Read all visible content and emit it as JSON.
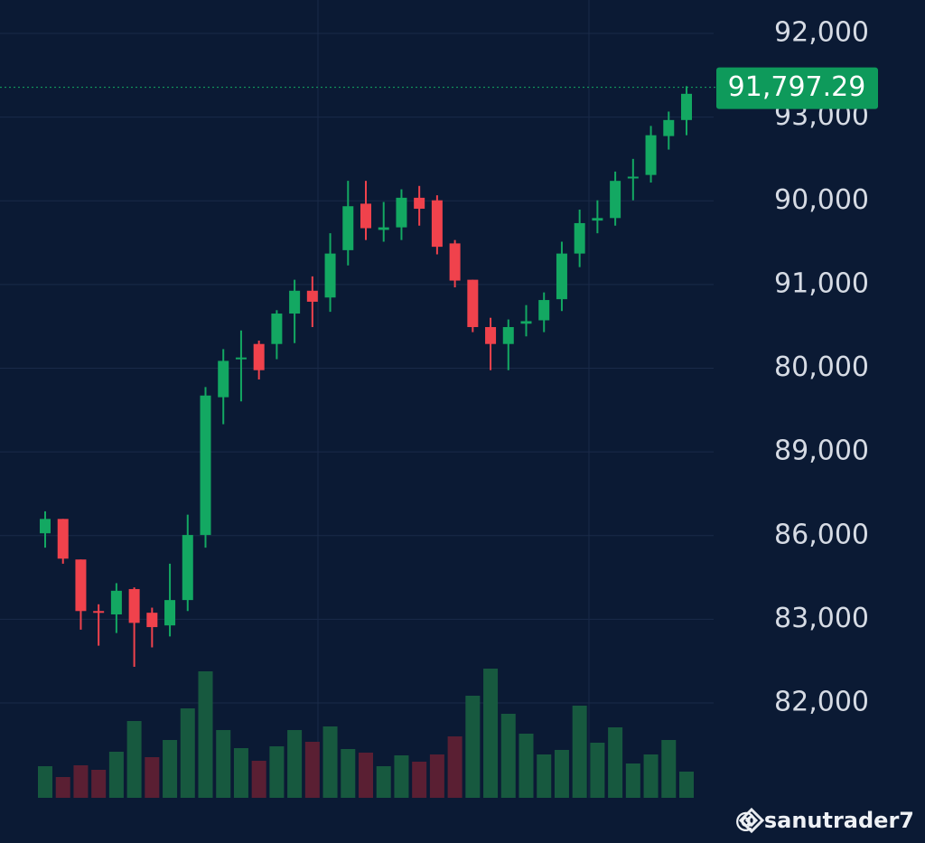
{
  "chart_data": {
    "type": "candlestick",
    "open": [
      86520,
      86690,
      86210,
      85600,
      85560,
      85860,
      85580,
      85430,
      85730,
      86500,
      88130,
      88580,
      88760,
      88760,
      89120,
      89390,
      89310,
      89870,
      90420,
      90110,
      90140,
      90490,
      90460,
      89950,
      89520,
      88960,
      88760,
      89000,
      89040,
      89290,
      89830,
      90220,
      90250,
      90720,
      90760,
      91220,
      91410
    ],
    "high": [
      86780,
      86690,
      86210,
      85680,
      85930,
      85880,
      85640,
      86160,
      86740,
      88250,
      88700,
      88920,
      88800,
      89160,
      89520,
      89560,
      90070,
      90690,
      90690,
      90440,
      90590,
      90630,
      90520,
      89990,
      89520,
      89070,
      89050,
      89220,
      89370,
      89970,
      90350,
      90460,
      90800,
      90950,
      91340,
      91510,
      91810
    ],
    "low": [
      86350,
      86160,
      85380,
      85190,
      85340,
      84940,
      85170,
      85300,
      85600,
      86350,
      87810,
      88080,
      88340,
      88580,
      88770,
      88960,
      89140,
      89690,
      89990,
      89970,
      89990,
      90160,
      89820,
      89430,
      88900,
      88450,
      88450,
      88850,
      88900,
      89150,
      89670,
      90070,
      90160,
      90460,
      90670,
      91060,
      91230
    ],
    "close": [
      86690,
      86220,
      85600,
      85580,
      85840,
      85460,
      85410,
      85730,
      86500,
      88150,
      88560,
      88600,
      88450,
      89120,
      89390,
      89260,
      89830,
      90390,
      90130,
      90140,
      90490,
      90360,
      89910,
      89510,
      88960,
      88760,
      88960,
      89030,
      89280,
      89830,
      90190,
      90250,
      90690,
      90740,
      91230,
      91410,
      91720
    ],
    "volume": [
      35,
      23,
      36,
      31,
      51,
      85,
      45,
      64,
      99,
      140,
      75,
      55,
      41,
      57,
      75,
      62,
      79,
      54,
      50,
      35,
      47,
      40,
      48,
      68,
      113,
      143,
      93,
      71,
      48,
      53,
      102,
      61,
      78,
      38,
      48,
      64,
      29
    ],
    "volume_colors": [
      "#17593f",
      "#5a1f33",
      "#5a1f33",
      "#5a1f33",
      "#17593f",
      "#17593f",
      "#5a1f33",
      "#17593f",
      "#17593f",
      "#17593f",
      "#17593f",
      "#17593f",
      "#5a1f33",
      "#17593f",
      "#17593f",
      "#5a1f33",
      "#17593f",
      "#17593f",
      "#5a1f33",
      "#17593f",
      "#17593f",
      "#5a1f33",
      "#5a1f33",
      "#5a1f33",
      "#17593f",
      "#17593f",
      "#17593f",
      "#17593f",
      "#17593f",
      "#17593f",
      "#17593f",
      "#17593f",
      "#17593f",
      "#17593f",
      "#17593f",
      "#17593f",
      "#17593f"
    ],
    "up_color": "#13a862",
    "down_color": "#f0424c",
    "ylim": [
      83390,
      92830
    ],
    "axis_labels": [
      "92,000",
      "93,000",
      "90,000",
      "91,000",
      "80,000",
      "89,000",
      "86,000",
      "83,000",
      "82,000"
    ],
    "last_price": {
      "value": 91797.29,
      "label": "91,797.29"
    },
    "watermark": "@ sanutrader7"
  }
}
